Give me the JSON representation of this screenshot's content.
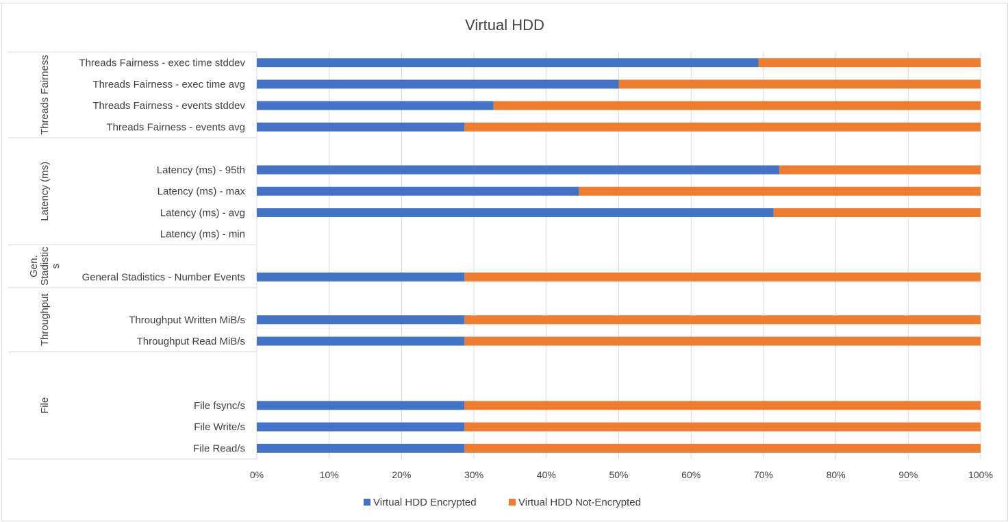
{
  "chart_data": {
    "type": "bar",
    "orientation": "horizontal",
    "stacked": "100%",
    "title": "Virtual HDD",
    "categories": [
      "Threads Fairness - exec time stddev",
      "Threads Fairness - exec time avg",
      "Threads Fairness - events stddev",
      "Threads Fairness - events avg",
      "",
      "Latency (ms) - 95th",
      "Latency (ms) - max",
      "Latency (ms) - avg",
      "Latency (ms) - min",
      "",
      "General Stadistics - Number Events",
      "",
      "Throughput Written MiB/s",
      "Throughput Read MiB/s",
      "",
      "",
      "File fsync/s",
      "File Write/s",
      "File Read/s"
    ],
    "groups": [
      {
        "label": "Threads Fairness",
        "lines": [
          "Threads Fairness"
        ],
        "start": 0,
        "end": 3
      },
      {
        "label": "Latency (ms)",
        "lines": [
          "Latency (ms)"
        ],
        "start": 4,
        "end": 8
      },
      {
        "label": "Gen. Stadistics",
        "lines": [
          "Gen.",
          "Stadistic",
          "s"
        ],
        "start": 9,
        "end": 10
      },
      {
        "label": "Throughput",
        "lines": [
          "Throughput"
        ],
        "start": 11,
        "end": 13
      },
      {
        "label": "File",
        "lines": [
          "File"
        ],
        "start": 14,
        "end": 18
      }
    ],
    "series": [
      {
        "name": "Virtual HDD Encrypted",
        "color": "#4472c4",
        "values": [
          69.3,
          50.0,
          32.7,
          28.7,
          null,
          72.2,
          44.5,
          71.4,
          null,
          null,
          28.7,
          null,
          28.7,
          28.7,
          null,
          null,
          28.7,
          28.7,
          28.7
        ]
      },
      {
        "name": "Virtual HDD Not-Encrypted",
        "color": "#ed7d31",
        "values": [
          30.7,
          50.0,
          67.3,
          71.3,
          null,
          27.8,
          55.5,
          28.6,
          null,
          null,
          71.3,
          null,
          71.3,
          71.3,
          null,
          null,
          71.3,
          71.3,
          71.3
        ]
      }
    ],
    "x_ticks": [
      "0%",
      "10%",
      "20%",
      "30%",
      "40%",
      "50%",
      "60%",
      "70%",
      "80%",
      "90%",
      "100%"
    ],
    "xlim": [
      0,
      100
    ],
    "grid": true,
    "legend": "bottom"
  }
}
